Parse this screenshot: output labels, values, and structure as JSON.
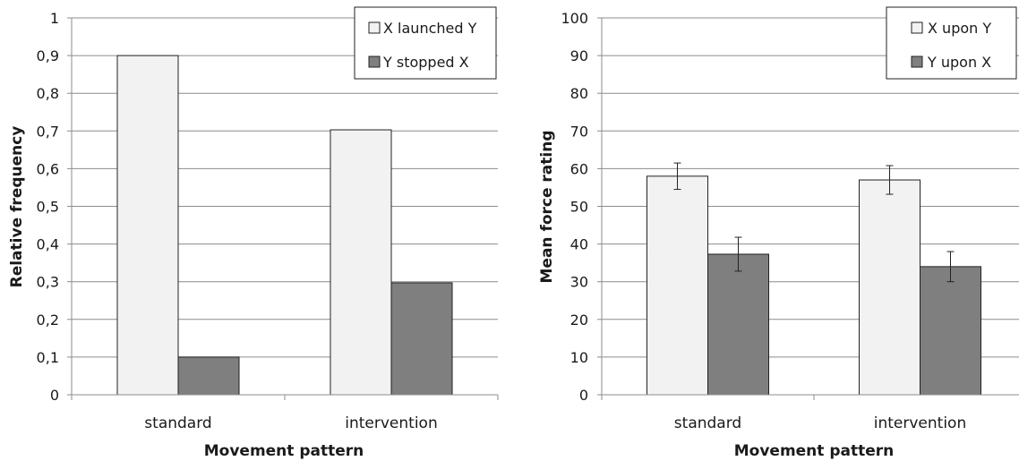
{
  "chart_data": [
    {
      "type": "bar",
      "categories": [
        "standard",
        "intervention"
      ],
      "series": [
        {
          "name": "X launched Y",
          "values": [
            0.9,
            0.703
          ],
          "color": "#f2f2f2"
        },
        {
          "name": "Y stopped X",
          "values": [
            0.1,
            0.297
          ],
          "color": "#7f7f7f"
        }
      ],
      "xlabel": "Movement pattern",
      "ylabel": "Relative frequency",
      "ylim": [
        0,
        1
      ],
      "yticks": [
        "0",
        "0,1",
        "0,2",
        "0,3",
        "0,4",
        "0,5",
        "0,6",
        "0,7",
        "0,8",
        "0,9",
        "1"
      ],
      "grid": true,
      "legend": "top-right"
    },
    {
      "type": "bar",
      "categories": [
        "standard",
        "intervention"
      ],
      "series": [
        {
          "name": "X upon Y",
          "values": [
            58,
            57
          ],
          "errors": [
            3.5,
            3.8
          ],
          "color": "#f2f2f2"
        },
        {
          "name": "Y upon X",
          "values": [
            37.3,
            34
          ],
          "errors": [
            4.5,
            4
          ],
          "color": "#7f7f7f"
        }
      ],
      "xlabel": "Movement pattern",
      "ylabel": "Mean force rating",
      "ylim": [
        0,
        100
      ],
      "yticks": [
        "0",
        "10",
        "20",
        "30",
        "40",
        "50",
        "60",
        "70",
        "80",
        "90",
        "100"
      ],
      "grid": true,
      "legend": "top-right"
    }
  ]
}
